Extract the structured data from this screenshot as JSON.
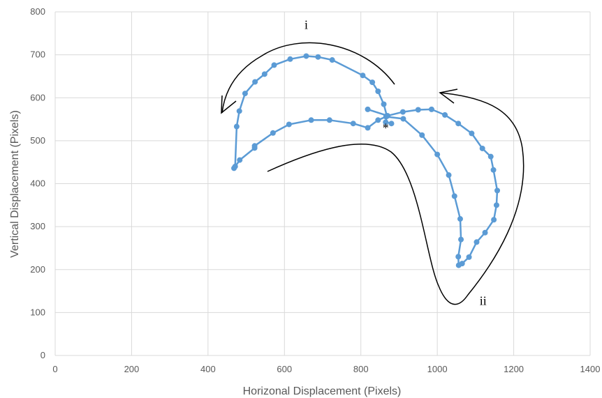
{
  "chart_data": {
    "type": "scatter",
    "title": "",
    "xlabel": "Horizonal Displacement (Pixels)",
    "ylabel": "Vertical Displacement (Pixels)",
    "xlim": [
      0,
      1400
    ],
    "ylim": [
      0,
      800
    ],
    "x_ticks": [
      "0",
      "200",
      "400",
      "600",
      "800",
      "1000",
      "1200",
      "1400"
    ],
    "y_ticks": [
      "0",
      "100",
      "200",
      "300",
      "400",
      "500",
      "600",
      "700",
      "800"
    ],
    "grid": true,
    "legend": "none",
    "series": [
      {
        "color": "#5b9bd5",
        "points": [
          [
            880,
            540
          ],
          [
            865,
            543
          ],
          [
            868,
            558
          ],
          [
            860,
            585
          ],
          [
            845,
            615
          ],
          [
            830,
            636
          ],
          [
            805,
            652
          ],
          [
            725,
            688
          ],
          [
            688,
            695
          ],
          [
            657,
            697
          ],
          [
            615,
            690
          ],
          [
            573,
            676
          ],
          [
            548,
            655
          ],
          [
            523,
            637
          ],
          [
            497,
            610
          ],
          [
            482,
            569
          ],
          [
            475,
            533
          ],
          [
            471,
            440
          ],
          [
            468,
            436
          ],
          [
            483,
            455
          ],
          [
            522,
            483
          ],
          [
            522,
            488
          ],
          [
            570,
            518
          ],
          [
            612,
            538
          ],
          [
            670,
            548
          ],
          [
            718,
            548
          ],
          [
            780,
            540
          ],
          [
            818,
            530
          ],
          [
            845,
            548
          ],
          [
            866,
            556
          ],
          [
            911,
            551
          ],
          [
            960,
            513
          ],
          [
            1000,
            468
          ],
          [
            1030,
            420
          ],
          [
            1045,
            371
          ],
          [
            1060,
            318
          ],
          [
            1062,
            270
          ],
          [
            1055,
            230
          ],
          [
            1056,
            210
          ],
          [
            1065,
            214
          ],
          [
            1083,
            229
          ],
          [
            1103,
            264
          ],
          [
            1125,
            286
          ],
          [
            1148,
            316
          ],
          [
            1155,
            350
          ],
          [
            1157,
            384
          ],
          [
            1147,
            432
          ],
          [
            1140,
            463
          ],
          [
            1118,
            482
          ],
          [
            1090,
            517
          ],
          [
            1055,
            540
          ],
          [
            1020,
            560
          ],
          [
            985,
            573
          ],
          [
            950,
            572
          ],
          [
            910,
            567
          ],
          [
            870,
            558
          ],
          [
            818,
            573
          ]
        ]
      }
    ],
    "annotations": [
      {
        "text": "i",
        "x": 657,
        "y": 760
      },
      {
        "text": "ii",
        "x": 1120,
        "y": 118
      },
      {
        "text": "*",
        "x": 865,
        "y": 520
      }
    ]
  }
}
